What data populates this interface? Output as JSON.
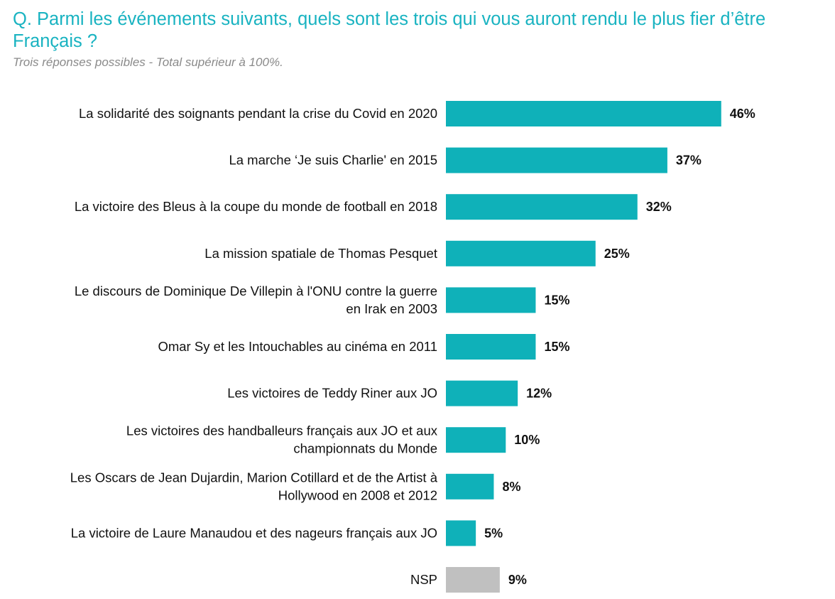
{
  "title": "Q. Parmi les événements suivants, quels sont les trois qui vous auront rendu le plus fier d’être Français ?",
  "subtitle": "Trois réponses possibles - Total supérieur à 100%.",
  "colors": {
    "bar": "#0fb1b9",
    "bar_nsp": "#c0c0c0",
    "title": "#19b3c1"
  },
  "chart_data": {
    "type": "bar",
    "orientation": "horizontal",
    "unit": "%",
    "categories": [
      [
        "La solidarité des soignants pendant la crise du Covid en 2020"
      ],
      [
        "La marche ‘Je suis Charlie' en 2015"
      ],
      [
        "La victoire des Bleus à la coupe du monde de football en 2018"
      ],
      [
        "La mission spatiale de Thomas Pesquet"
      ],
      [
        "Le discours de Dominique De Villepin à l'ONU contre la guerre",
        "en Irak en 2003"
      ],
      [
        "Omar Sy et les Intouchables au cinéma en 2011"
      ],
      [
        "Les victoires de Teddy Riner aux JO"
      ],
      [
        "Les victoires des handballeurs français aux JO et aux",
        "championnats du Monde"
      ],
      [
        "Les Oscars de Jean Dujardin, Marion Cotillard et de the Artist à",
        "Hollywood en 2008 et 2012"
      ],
      [
        "La victoire de Laure Manaudou et des nageurs français aux JO"
      ],
      [
        "NSP"
      ]
    ],
    "values": [
      46,
      37,
      32,
      25,
      15,
      15,
      12,
      10,
      8,
      5,
      9
    ],
    "value_labels": [
      "46%",
      "37%",
      "32%",
      "25%",
      "15%",
      "15%",
      "12%",
      "10%",
      "8%",
      "5%",
      "9%"
    ],
    "highlight_gray": [
      "NSP"
    ],
    "grid": false,
    "legend": "none"
  }
}
